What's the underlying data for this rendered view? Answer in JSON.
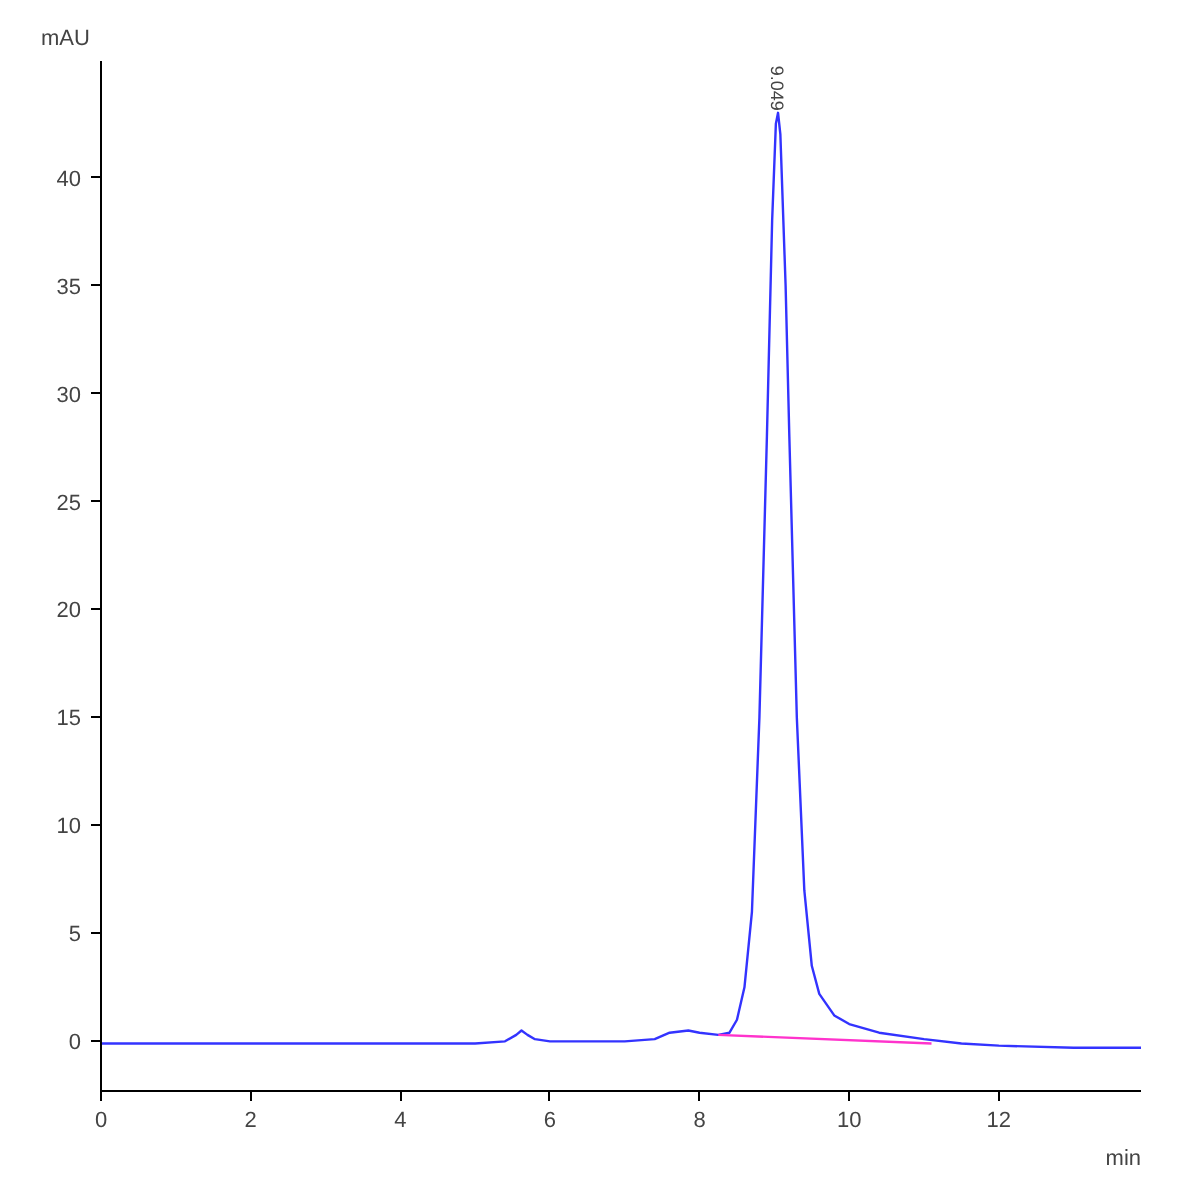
{
  "chart_data": {
    "type": "line",
    "xlabel": "min",
    "ylabel": "mAU",
    "xlim": [
      0,
      13.9
    ],
    "ylim": [
      -2.3,
      45.4
    ],
    "xticks": [
      0,
      2,
      4,
      6,
      8,
      10,
      12
    ],
    "yticks": [
      0,
      5,
      10,
      15,
      20,
      25,
      30,
      35,
      40
    ],
    "grid": false,
    "marker": "none",
    "line_style": "solid",
    "series": [
      {
        "color": "#3333ff",
        "x": [
          0,
          1,
          2,
          3,
          4,
          5,
          5.4,
          5.55,
          5.62,
          5.7,
          5.8,
          6,
          7,
          7.4,
          7.6,
          7.85,
          8.0,
          8.25,
          8.4,
          8.5,
          8.6,
          8.7,
          8.8,
          8.9,
          8.97,
          9.02,
          9.049,
          9.08,
          9.15,
          9.2,
          9.3,
          9.4,
          9.5,
          9.6,
          9.8,
          10,
          10.4,
          11,
          11.5,
          12,
          13,
          13.9
        ],
        "values": [
          -0.1,
          -0.1,
          -0.1,
          -0.1,
          -0.1,
          -0.1,
          0,
          0.3,
          0.5,
          0.3,
          0.1,
          0,
          0,
          0.1,
          0.4,
          0.5,
          0.4,
          0.3,
          0.4,
          1,
          2.5,
          6,
          15,
          28,
          38,
          42.5,
          43,
          42,
          35,
          28,
          15,
          7,
          3.5,
          2.2,
          1.2,
          0.8,
          0.4,
          0.1,
          -0.1,
          -0.2,
          -0.3,
          -0.3
        ]
      },
      {
        "color": "#ff33cc",
        "x": [
          8.25,
          11.1
        ],
        "values": [
          0.3,
          -0.1
        ]
      }
    ],
    "annotations": [
      {
        "text": "9.049",
        "x": 9.049,
        "y": 43
      }
    ]
  }
}
